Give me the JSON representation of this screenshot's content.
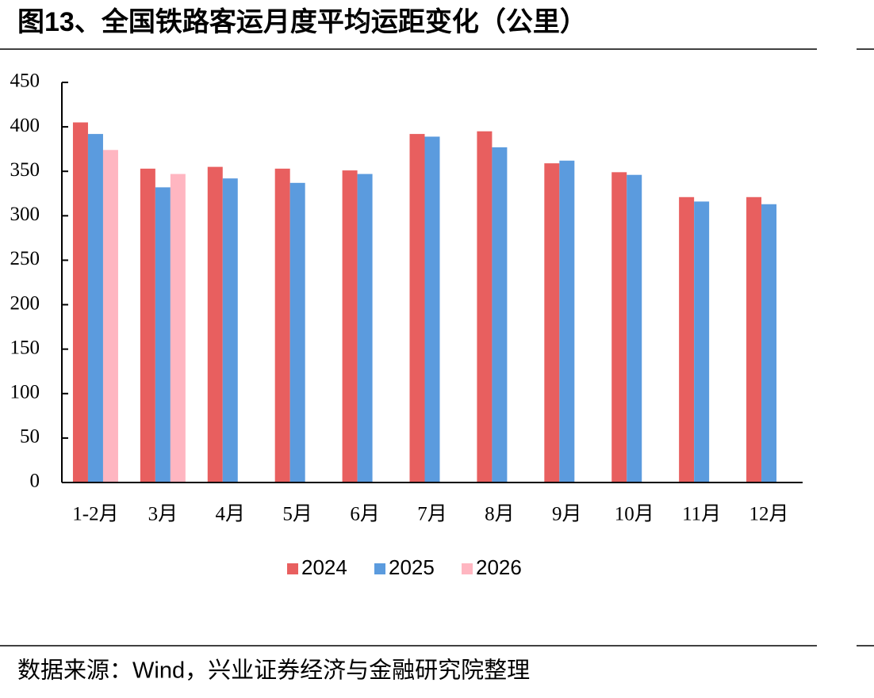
{
  "chart_data": {
    "type": "bar",
    "title": "图13、全国铁路客运月度平均运距变化（公里）",
    "categories": [
      "1-2月",
      "3月",
      "4月",
      "5月",
      "6月",
      "7月",
      "8月",
      "9月",
      "10月",
      "11月",
      "12月"
    ],
    "series": [
      {
        "name": "2024",
        "color": "#e85f5f",
        "values": [
          405,
          353,
          355,
          353,
          351,
          392,
          395,
          359,
          349,
          321,
          321
        ]
      },
      {
        "name": "2025",
        "color": "#5b9bde",
        "values": [
          392,
          332,
          342,
          337,
          347,
          389,
          377,
          362,
          346,
          316,
          313
        ]
      },
      {
        "name": "2026",
        "color": "#ffb6c1",
        "values": [
          374,
          347,
          null,
          null,
          null,
          null,
          null,
          null,
          null,
          null,
          null
        ]
      }
    ],
    "ylim": [
      0,
      450
    ],
    "yticks": [
      0,
      50,
      100,
      150,
      200,
      250,
      300,
      350,
      400,
      450
    ],
    "grid": false
  },
  "source": "数据来源：Wind，兴业证券经济与金融研究院整理"
}
